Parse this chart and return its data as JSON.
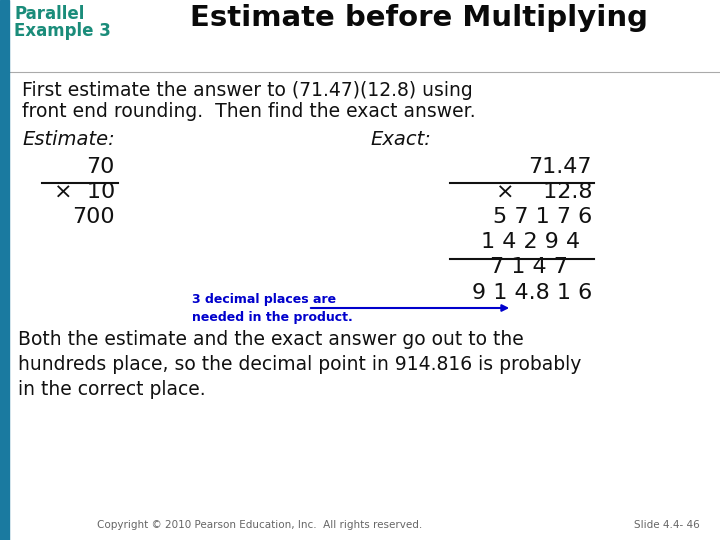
{
  "title_left_line1": "Parallel",
  "title_left_line2": "Example 3",
  "title_right": "Estimate before Multiplying",
  "title_color": "#1A8C7A",
  "bg_color": "#FFFFFF",
  "left_bar_color": "#1A7AA0",
  "intro_text_line1": "First estimate the answer to (71.47)(12.8) using",
  "intro_text_line2": "front end rounding.  Then find the exact answer.",
  "estimate_label": "Estimate:",
  "exact_label": "Exact:",
  "note_color": "#0000CC",
  "arrow_color": "#0000CC",
  "text_color": "#111111",
  "copyright_text": "Copyright © 2010 Pearson Education, Inc.  All rights reserved.",
  "slide_text": "Slide 4.4- 46"
}
